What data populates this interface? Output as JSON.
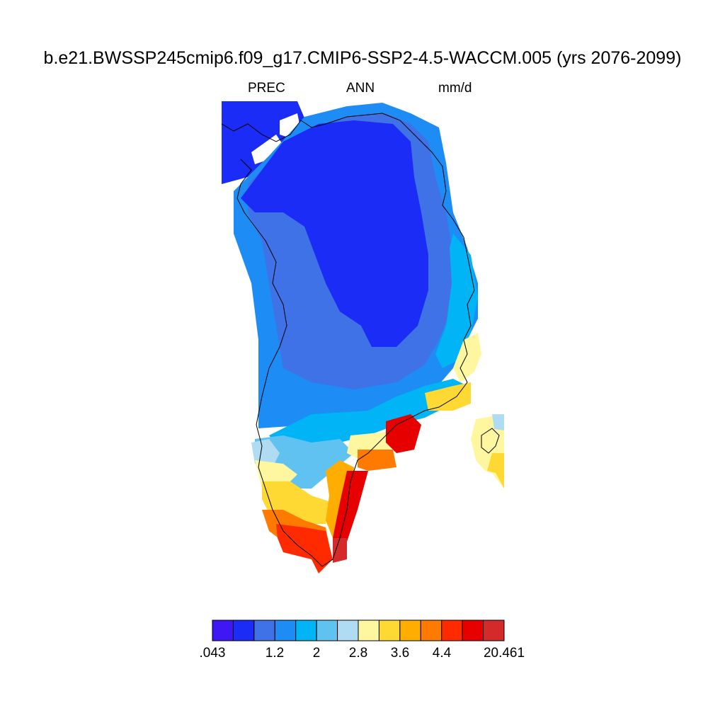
{
  "title": "b.e21.BWSSP245cmip6.f09_g17.CMIP6-SSP2-4.5-WACCM.005 (yrs 2076-2099)",
  "subtitle": {
    "variable": "PREC",
    "season": "ANN",
    "units": "mm/d"
  },
  "colorbar": {
    "colors": [
      "#3f17f5",
      "#1a2cf5",
      "#3f72e6",
      "#1e8cf5",
      "#00b4f5",
      "#5fc2f1",
      "#b0dcf3",
      "#fff7a0",
      "#ffd933",
      "#ffad00",
      "#ff7a00",
      "#ff2a00",
      "#e60000",
      "#d42a2a"
    ],
    "tick_labels": [
      ".043",
      "1.2",
      "2",
      "2.8",
      "3.6",
      "4.4",
      "20.461"
    ]
  },
  "map": {
    "field": "annual mean precipitation",
    "region": "Greenland"
  }
}
